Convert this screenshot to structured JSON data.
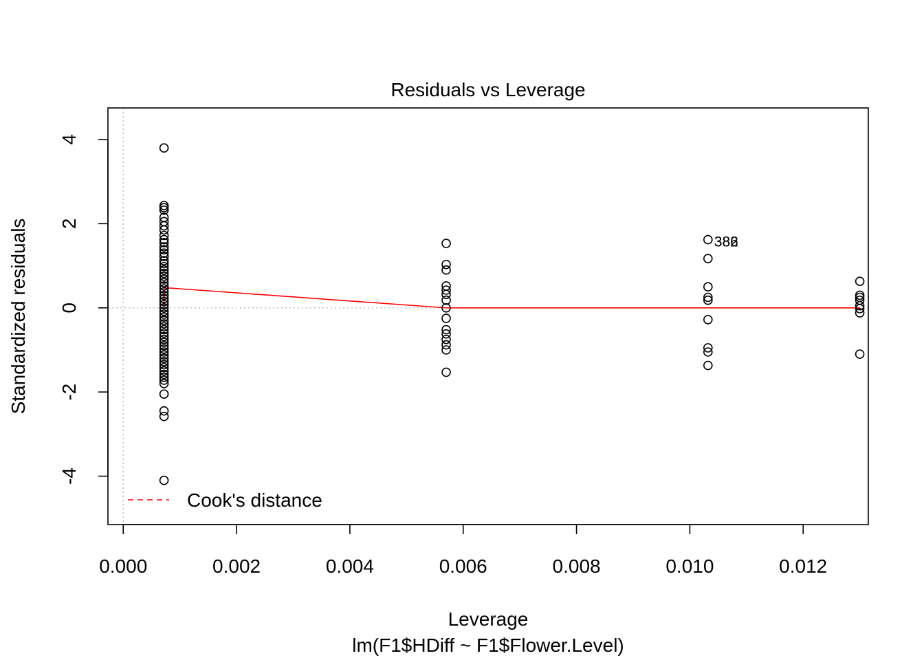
{
  "chart_data": {
    "type": "scatter",
    "title": "Residuals vs Leverage",
    "xlabel": "Leverage",
    "subtitle": "lm(F1$HDiff ~ F1$Flower.Level)",
    "ylabel": "Standardized residuals",
    "xlim": [
      -0.00027,
      0.01315
    ],
    "ylim": [
      -5.15,
      4.75
    ],
    "xticks": [
      0.0,
      0.002,
      0.004,
      0.006,
      0.008,
      0.01,
      0.012
    ],
    "xtick_labels": [
      "0.000",
      "0.002",
      "0.004",
      "0.006",
      "0.008",
      "0.010",
      "0.012"
    ],
    "yticks": [
      -4,
      -2,
      0,
      2,
      4
    ],
    "ytick_labels": [
      "-4",
      "-2",
      "0",
      "2",
      "4"
    ],
    "grid": false,
    "reference_lines": {
      "x": 0,
      "y": 0
    },
    "groups": [
      {
        "x": 0.00072,
        "y": [
          3.8,
          2.43,
          2.38,
          2.32,
          2.15,
          2.05,
          1.95,
          1.85,
          1.72,
          1.62,
          1.55,
          1.45,
          1.38,
          1.3,
          1.22,
          1.12,
          1.05,
          0.98,
          0.9,
          0.82,
          0.75,
          0.68,
          0.6,
          0.52,
          0.45,
          0.38,
          0.3,
          0.22,
          0.15,
          0.08,
          0.0,
          -0.08,
          -0.15,
          -0.22,
          -0.3,
          -0.38,
          -0.45,
          -0.52,
          -0.6,
          -0.68,
          -0.75,
          -0.82,
          -0.9,
          -0.98,
          -1.05,
          -1.12,
          -1.2,
          -1.28,
          -1.35,
          -1.42,
          -1.5,
          -1.58,
          -1.65,
          -1.72,
          -1.8,
          -2.05,
          -2.45,
          -2.58,
          -4.1
        ]
      },
      {
        "x": 0.0057,
        "y": [
          1.53,
          1.03,
          0.9,
          0.52,
          0.42,
          0.32,
          0.18,
          0.0,
          -0.25,
          -0.52,
          -0.62,
          -0.75,
          -0.88,
          -1.0,
          -1.53
        ]
      },
      {
        "x": 0.01032,
        "y": [
          1.62,
          1.17,
          0.5,
          0.25,
          0.18,
          -0.28,
          -0.95,
          -1.05,
          -1.37
        ]
      },
      {
        "x": 0.013,
        "y": [
          0.63,
          0.3,
          0.25,
          0.18,
          0.05,
          -0.02,
          -0.12,
          -1.1
        ]
      }
    ],
    "point_labels": [
      {
        "x": 0.01032,
        "y": 1.62,
        "text": "382"
      },
      {
        "x": 0.01032,
        "y": 1.62,
        "text": "386"
      }
    ],
    "smoother": {
      "x": [
        0.00072,
        0.00072,
        0.0057,
        0.01032,
        0.013
      ],
      "y": [
        0.0,
        0.48,
        0.0,
        0.0,
        0.0
      ]
    },
    "legend": {
      "position": "bottom-left",
      "entries": [
        "Cook's distance"
      ]
    },
    "colors": {
      "points": "#000000",
      "smoother": "#ff0000",
      "cooks": "#ff0000",
      "reference": "#bebebe"
    }
  }
}
